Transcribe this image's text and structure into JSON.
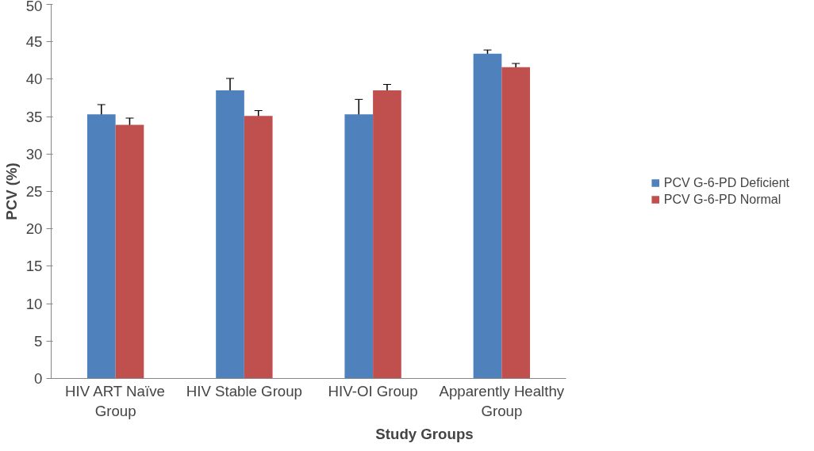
{
  "chart_data": {
    "type": "bar",
    "xlabel": "Study Groups",
    "ylabel": "PCV (%)",
    "categories": [
      "HIV ART Naïve Group",
      "HIV Stable Group",
      "HIV-OI Group",
      "Apparently Healthy Group"
    ],
    "series": [
      {
        "name": "PCV G-6-PD Deficient",
        "color": "#4f81bd",
        "values": [
          35.3,
          38.5,
          35.3,
          43.4
        ],
        "errors": [
          1.3,
          1.6,
          2.0,
          0.5
        ]
      },
      {
        "name": "PCV G-6-PD Normal",
        "color": "#c0504d",
        "values": [
          33.9,
          35.1,
          38.5,
          41.6
        ],
        "errors": [
          0.9,
          0.7,
          0.8,
          0.5
        ]
      }
    ],
    "ylim": [
      0,
      50
    ],
    "yticks": [
      0,
      5,
      10,
      15,
      20,
      25,
      30,
      35,
      40,
      45,
      50
    ],
    "grid": false,
    "legend": "right"
  }
}
